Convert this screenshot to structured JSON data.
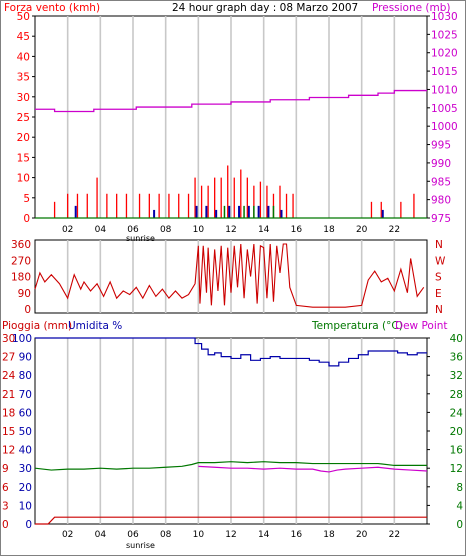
{
  "title": "24 hour graph day : 08 Marzo 2007",
  "colors": {
    "bg": "#ffffff",
    "plot_bg": "#ffffff",
    "border": "#000000",
    "grid": "#c8c8c8",
    "red": "#ff0000",
    "magenta": "#cc00cc",
    "blue": "#0000aa",
    "green": "#007700",
    "dark_red": "#cc0000"
  },
  "chart_data": [
    {
      "id": "wind_pressure",
      "type": "line",
      "left_label": "Forza vento (kmh)",
      "right_label": "Pressione (mb)",
      "left_ticks": [
        "0",
        "5",
        "10",
        "15",
        "20",
        "25",
        "30",
        "35",
        "40",
        "45",
        "50"
      ],
      "right_ticks": [
        "975",
        "980",
        "985",
        "990",
        "995",
        "1000",
        "1005",
        "1010",
        "1015",
        "1020",
        "1025",
        "1030"
      ],
      "x_ticks": [
        "02",
        "04",
        "06",
        "08",
        "10",
        "12",
        "14",
        "16",
        "18",
        "20",
        "22"
      ],
      "x_extra_label": "sunrise",
      "ylim_left": [
        0,
        50
      ],
      "ylim_right": [
        975,
        1030
      ],
      "xlim": [
        0,
        24
      ],
      "grid": true,
      "series": [
        {
          "color": "#cc00cc",
          "axis": "right",
          "step": true,
          "x": [
            0,
            1.2,
            3.6,
            6.2,
            9.6,
            12.0,
            14.4,
            16.8,
            19.2,
            21.0,
            22.0,
            24.0
          ],
          "y": [
            1004.6,
            1004.0,
            1004.6,
            1005.2,
            1006.0,
            1006.6,
            1007.2,
            1007.8,
            1008.4,
            1009.0,
            1009.7,
            1009.7
          ]
        },
        {
          "color": "#007700",
          "axis": "left",
          "step": false,
          "x": [
            0,
            24
          ],
          "y": [
            0,
            0
          ]
        }
      ],
      "wind_gust": {
        "color": "#ff0000",
        "x": [
          1.2,
          2.0,
          2.6,
          3.2,
          3.8,
          4.4,
          5.0,
          5.6,
          6.4,
          7.0,
          7.6,
          8.2,
          8.8,
          9.4,
          9.8,
          10.2,
          10.6,
          11.0,
          11.4,
          11.8,
          12.2,
          12.6,
          13.0,
          13.4,
          13.8,
          14.2,
          14.6,
          15.0,
          15.4,
          15.8,
          20.6,
          21.2,
          22.4,
          23.2
        ],
        "y": [
          4,
          6,
          6,
          6,
          10,
          6,
          6,
          6,
          6,
          6,
          6,
          6,
          6,
          6,
          10,
          8,
          8,
          10,
          10,
          13,
          10,
          12,
          10,
          8,
          9,
          8,
          6,
          8,
          6,
          6,
          4,
          4,
          4,
          6
        ]
      },
      "wind_avg": {
        "color": "#0000aa",
        "x": [
          2.4,
          7.2,
          9.8,
          10.4,
          11.0,
          11.8,
          12.4,
          13.0,
          13.6,
          14.2,
          15.0,
          21.2
        ],
        "y": [
          3,
          2,
          3,
          3,
          2,
          3,
          3,
          3,
          3,
          3,
          2,
          2
        ]
      },
      "wind_green": {
        "color": "#007700",
        "x": [
          11.6,
          12.8,
          13.4,
          14.6
        ],
        "y": [
          3,
          3,
          3,
          3
        ]
      }
    },
    {
      "id": "direction",
      "type": "line",
      "left_ticks": [
        "0",
        "90",
        "180",
        "270",
        "360"
      ],
      "right_ticks": [
        "N",
        "E",
        "S",
        "W",
        "N"
      ],
      "ylim": [
        0,
        360
      ],
      "xlim": [
        0,
        24
      ],
      "grid": true,
      "series": [
        {
          "color": "#cc0000",
          "x": [
            0,
            0.3,
            0.6,
            1.0,
            1.5,
            2.0,
            2.4,
            2.8,
            3.0,
            3.4,
            3.8,
            4.2,
            4.6,
            5.0,
            5.4,
            5.8,
            6.2,
            6.6,
            7.0,
            7.4,
            7.8,
            8.2,
            8.6,
            9.0,
            9.4,
            9.8,
            10.0,
            10.1,
            10.3,
            10.5,
            10.6,
            10.8,
            11.0,
            11.2,
            11.4,
            11.6,
            11.8,
            12.0,
            12.2,
            12.4,
            12.6,
            12.8,
            13.0,
            13.2,
            13.4,
            13.6,
            13.8,
            14.0,
            14.2,
            14.4,
            14.6,
            14.8,
            15.0,
            15.2,
            15.4,
            15.6,
            16.0,
            17.0,
            18.0,
            19.0,
            20.0,
            20.4,
            20.8,
            21.2,
            21.6,
            22.0,
            22.4,
            22.8,
            23.0,
            23.4,
            23.8
          ],
          "y": [
            110,
            200,
            150,
            190,
            140,
            60,
            190,
            110,
            150,
            100,
            140,
            70,
            150,
            60,
            100,
            80,
            120,
            60,
            130,
            70,
            110,
            60,
            100,
            60,
            80,
            140,
            350,
            30,
            350,
            90,
            340,
            20,
            330,
            100,
            350,
            20,
            340,
            90,
            350,
            120,
            360,
            60,
            330,
            180,
            360,
            30,
            350,
            340,
            60,
            360,
            40,
            350,
            200,
            360,
            360,
            120,
            20,
            10,
            10,
            10,
            20,
            160,
            210,
            150,
            170,
            100,
            220,
            90,
            280,
            70,
            120
          ]
        }
      ]
    },
    {
      "id": "rain_humidity_temp",
      "type": "line",
      "left_label_1": "Pioggia (mm)",
      "left_label_2": "Umidita %",
      "right_label_1": "Temperatura (°C)",
      "right_label_2": "Dew Point",
      "rain_ticks": [
        "0",
        "3",
        "6",
        "9",
        "12",
        "15",
        "18",
        "21",
        "24",
        "27",
        "30"
      ],
      "humidity_ticks": [
        "0",
        "10",
        "20",
        "30",
        "40",
        "50",
        "60",
        "70",
        "80",
        "90",
        "100"
      ],
      "temp_ticks": [
        "0",
        "4",
        "8",
        "12",
        "16",
        "20",
        "24",
        "28",
        "32",
        "36",
        "40"
      ],
      "x_ticks": [
        "02",
        "04",
        "06",
        "08",
        "10",
        "12",
        "14",
        "16",
        "18",
        "20",
        "22"
      ],
      "x_extra_label": "sunrise",
      "ylim_humidity": [
        0,
        100
      ],
      "ylim_temp": [
        0,
        40
      ],
      "ylim_rain": [
        0,
        30
      ],
      "xlim": [
        0,
        24
      ],
      "grid": true,
      "series": [
        {
          "color": "#0000aa",
          "axis": "humidity",
          "x": [
            0,
            9.6,
            9.8,
            10.2,
            10.6,
            11.0,
            11.4,
            12.0,
            12.6,
            13.2,
            13.8,
            14.4,
            15.0,
            15.6,
            16.2,
            16.8,
            17.4,
            18.0,
            18.6,
            19.2,
            19.8,
            20.4,
            21.0,
            21.6,
            22.2,
            22.8,
            23.4,
            24.0
          ],
          "y": [
            100,
            100,
            97,
            94,
            91,
            92,
            90,
            89,
            91,
            88,
            89,
            90,
            89,
            89,
            89,
            88,
            87,
            85,
            87,
            89,
            91,
            93,
            93,
            93,
            92,
            91,
            92,
            92
          ]
        },
        {
          "color": "#007700",
          "axis": "temp",
          "x": [
            0,
            1.0,
            2.0,
            3.0,
            4.0,
            5.0,
            6.0,
            7.0,
            8.0,
            9.0,
            9.6,
            10.0,
            11.0,
            12.0,
            13.0,
            14.0,
            15.0,
            16.0,
            17.0,
            18.0,
            19.0,
            20.0,
            21.0,
            22.0,
            23.0,
            24.0
          ],
          "y": [
            12.0,
            11.6,
            11.8,
            11.8,
            12.0,
            11.8,
            12.0,
            12.0,
            12.2,
            12.4,
            12.8,
            13.2,
            13.2,
            13.4,
            13.2,
            13.4,
            13.2,
            13.2,
            13.0,
            13.0,
            13.0,
            13.0,
            13.0,
            12.6,
            12.6,
            12.6
          ]
        },
        {
          "color": "#cc00cc",
          "axis": "temp",
          "x": [
            10.0,
            11.0,
            12.0,
            13.0,
            14.0,
            15.0,
            16.0,
            17.0,
            17.5,
            18.0,
            18.5,
            19.0,
            20.0,
            21.0,
            22.0,
            23.0,
            24.0
          ],
          "y": [
            12.4,
            12.2,
            12.0,
            12.0,
            11.8,
            12.0,
            11.8,
            11.8,
            11.4,
            11.2,
            11.6,
            11.8,
            12.0,
            12.2,
            11.8,
            11.6,
            11.4
          ]
        },
        {
          "color": "#cc0000",
          "axis": "rain",
          "x": [
            0,
            0.8,
            1.2,
            24.0
          ],
          "y": [
            0,
            0,
            1.1,
            1.1
          ]
        }
      ]
    }
  ]
}
